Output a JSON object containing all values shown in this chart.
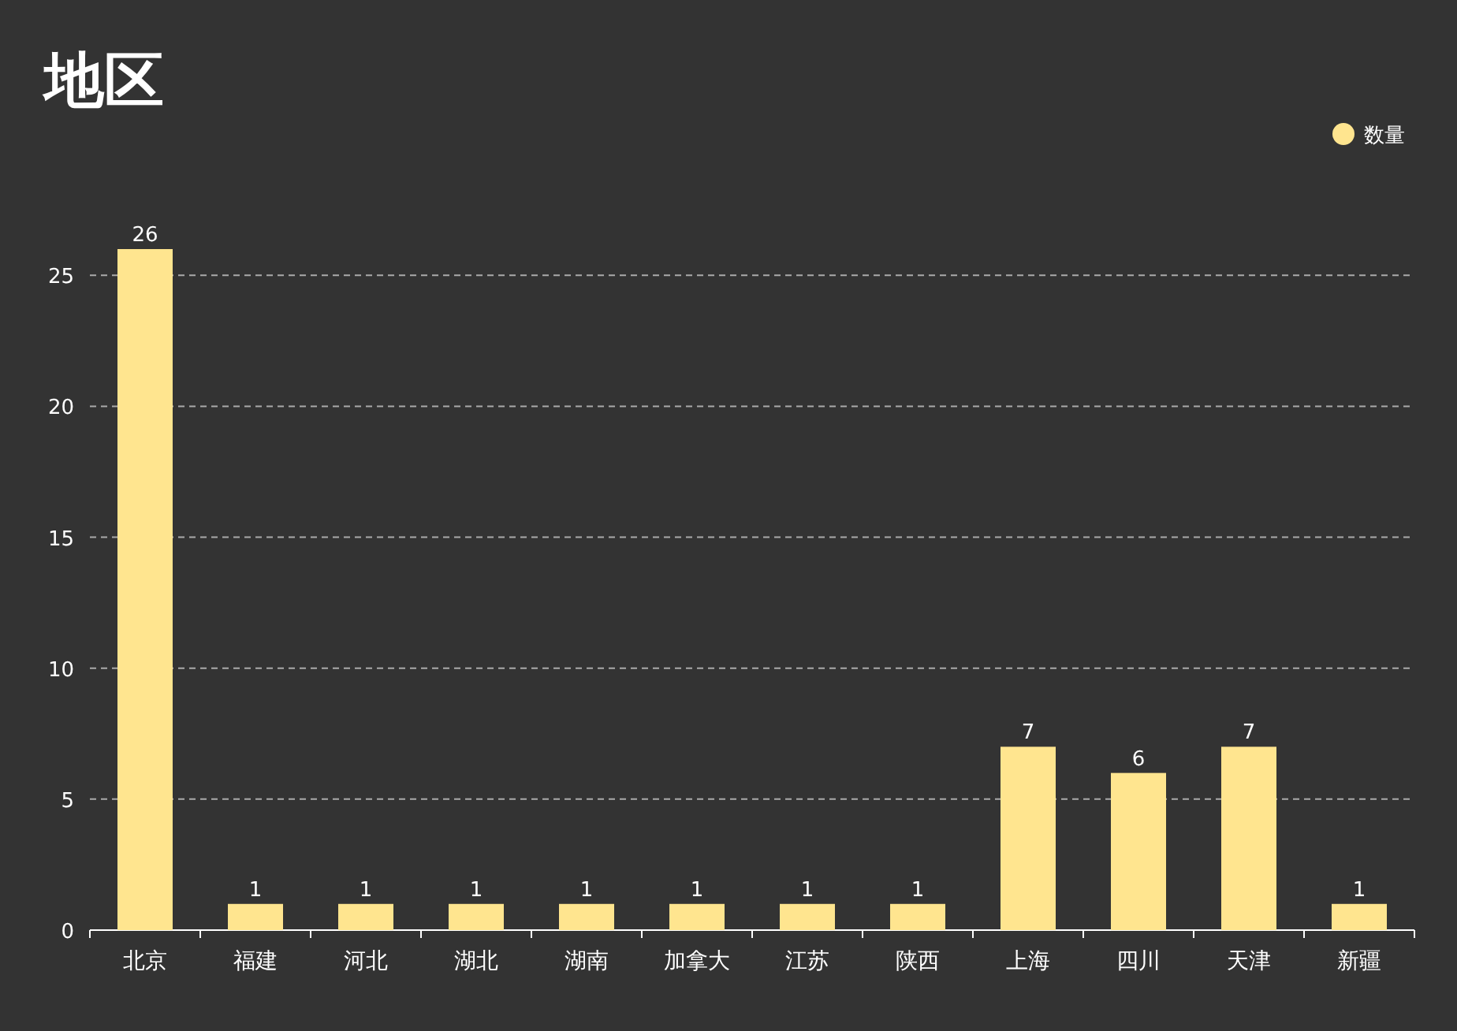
{
  "chart_data": {
    "type": "bar",
    "title": "地区",
    "categories": [
      "北京",
      "福建",
      "河北",
      "湖北",
      "湖南",
      "加拿大",
      "江苏",
      "陕西",
      "上海",
      "四川",
      "天津",
      "新疆"
    ],
    "series": [
      {
        "name": "数量",
        "color": "#ffe58f",
        "values": [
          26,
          1,
          1,
          1,
          1,
          1,
          1,
          1,
          7,
          6,
          7,
          1
        ]
      }
    ],
    "ylim": [
      0,
      26
    ],
    "yticks": [
      0,
      5,
      10,
      15,
      20,
      25
    ],
    "grid": "y",
    "legend": "top right",
    "data_labels": true
  }
}
